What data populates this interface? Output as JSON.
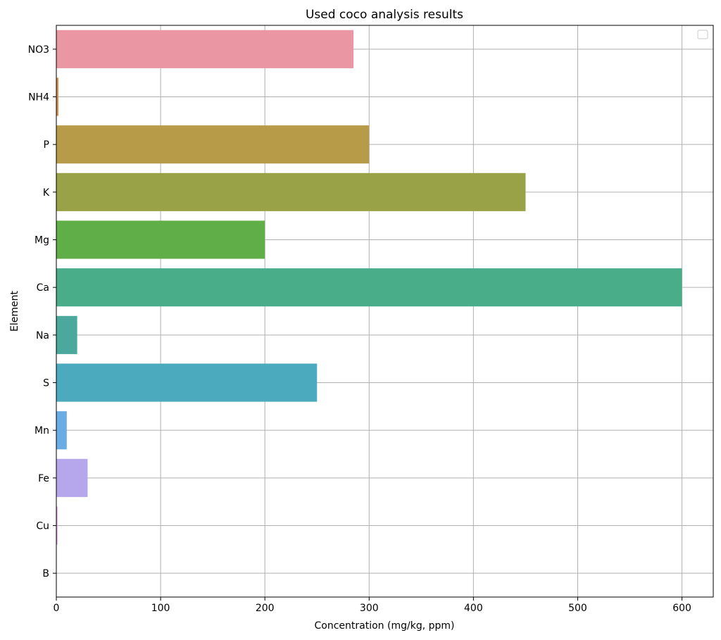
{
  "chart_data": {
    "type": "bar",
    "orientation": "horizontal",
    "title": "Used coco analysis results",
    "xlabel": "Concentration (mg/kg, ppm)",
    "ylabel": "Element",
    "categories": [
      "NO3",
      "NH4",
      "P",
      "K",
      "Mg",
      "Ca",
      "Na",
      "S",
      "Mn",
      "Fe",
      "Cu",
      "B"
    ],
    "values": [
      285,
      2,
      300,
      450,
      200,
      600,
      20,
      250,
      10,
      30,
      1,
      0.3
    ],
    "colors": [
      "#ea96a3",
      "#dd8c4c",
      "#b89b49",
      "#99a247",
      "#60ae47",
      "#4aad89",
      "#4aa99c",
      "#4caabe",
      "#6aace4",
      "#b6a6eb",
      "#d48aec",
      "#e694c7"
    ],
    "xlim": [
      0,
      630
    ],
    "xticks": [
      0,
      100,
      200,
      300,
      400,
      500,
      600
    ],
    "grid": true,
    "legend": {
      "position": "top-right",
      "entries": []
    }
  }
}
